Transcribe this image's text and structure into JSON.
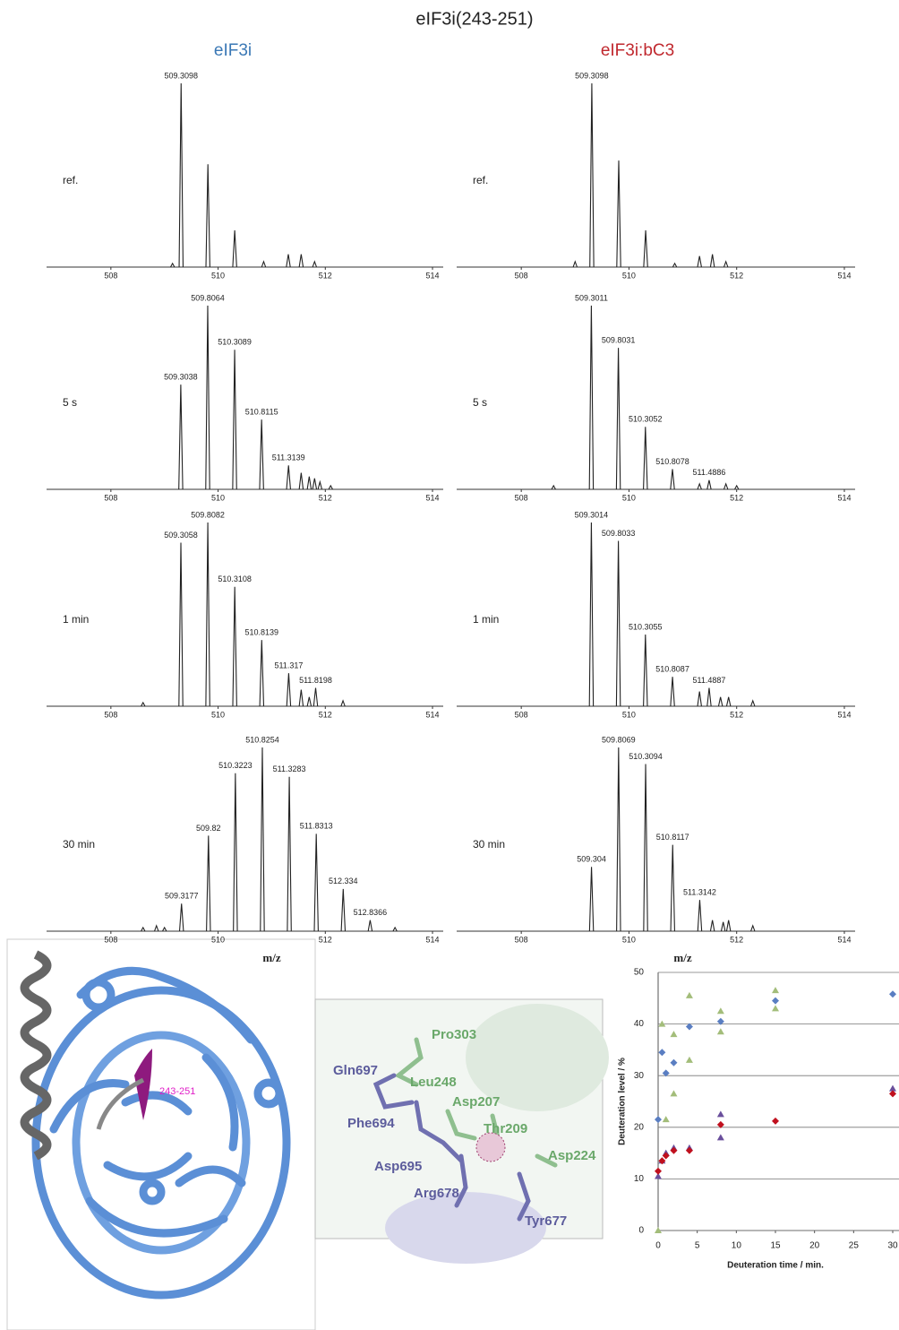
{
  "title": "eIF3i(243-251)",
  "columns": [
    "eIF3i",
    "eIF3i:bC3"
  ],
  "structure": {
    "label": "243-251"
  },
  "detail": {
    "labels": [
      "Pro303",
      "Gln697",
      "Leu248",
      "Asp207",
      "Phe694",
      "Thr209",
      "Asp224",
      "Asp695",
      "Arg678",
      "Tyr677"
    ]
  },
  "chart_data": [
    {
      "type": "spectrum",
      "label": "ref.",
      "x": [
        509.3098
      ],
      "values": [
        100
      ],
      "minor": {
        "x": [
          509.15,
          509.81,
          510.31,
          510.85,
          511.31,
          511.55,
          511.8
        ],
        "values": [
          2,
          56,
          20,
          3,
          7,
          7,
          3
        ]
      },
      "xlim": [
        506.8,
        514.2
      ],
      "ylim": [
        0,
        100
      ],
      "xticks": [
        508,
        510,
        512,
        514
      ]
    },
    {
      "type": "spectrum",
      "label": "ref.",
      "x": [
        509.3098
      ],
      "values": [
        100
      ],
      "minor": {
        "x": [
          509.0,
          509.81,
          510.31,
          510.85,
          511.31,
          511.55,
          511.8
        ],
        "values": [
          3,
          58,
          20,
          2,
          6,
          7,
          3
        ]
      },
      "xlim": [
        506.8,
        514.2
      ],
      "ylim": [
        0,
        100
      ],
      "xticks": [
        508,
        510,
        512,
        514
      ]
    },
    {
      "type": "spectrum",
      "label": "5 s",
      "x": [
        509.3038,
        509.8064,
        510.3089,
        510.8115,
        511.3139
      ],
      "values": [
        57,
        100,
        76,
        38,
        13
      ],
      "minor": {
        "x": [
          511.55,
          511.7,
          511.8,
          511.9,
          512.1
        ],
        "values": [
          9,
          7,
          6,
          4,
          2
        ]
      },
      "xlim": [
        506.8,
        514.2
      ],
      "ylim": [
        0,
        100
      ],
      "xticks": [
        508,
        510,
        512,
        514
      ]
    },
    {
      "type": "spectrum",
      "label": "5 s",
      "x": [
        509.3011,
        509.8031,
        510.3052,
        510.8078,
        511.4886
      ],
      "values": [
        100,
        77,
        34,
        11,
        5
      ],
      "minor": {
        "x": [
          508.6,
          511.31,
          511.8,
          512.0
        ],
        "values": [
          2,
          3,
          3,
          2
        ]
      },
      "xlim": [
        506.8,
        514.2
      ],
      "ylim": [
        0,
        100
      ],
      "xticks": [
        508,
        510,
        512,
        514
      ]
    },
    {
      "type": "spectrum",
      "label": "1 min",
      "x": [
        509.3058,
        509.8082,
        510.3108,
        510.8139,
        511.317,
        511.8198
      ],
      "values": [
        89,
        100,
        65,
        36,
        18,
        10
      ],
      "minor": {
        "x": [
          508.6,
          511.55,
          511.7,
          512.33
        ],
        "values": [
          2,
          9,
          5,
          3
        ]
      },
      "xlim": [
        506.8,
        514.2
      ],
      "ylim": [
        0,
        100
      ],
      "xticks": [
        508,
        510,
        512,
        514
      ]
    },
    {
      "type": "spectrum",
      "label": "1 min",
      "x": [
        509.3014,
        509.8033,
        510.3055,
        510.8087,
        511.4887
      ],
      "values": [
        100,
        90,
        39,
        16,
        10
      ],
      "minor": {
        "x": [
          511.31,
          511.7,
          511.85,
          512.3
        ],
        "values": [
          8,
          5,
          5,
          3
        ]
      },
      "xlim": [
        506.8,
        514.2
      ],
      "ylim": [
        0,
        100
      ],
      "xticks": [
        508,
        510,
        512,
        514
      ]
    },
    {
      "type": "spectrum",
      "label": "30 min",
      "xlabel": "m/z",
      "x": [
        509.3177,
        509.82,
        510.3223,
        510.8254,
        511.3283,
        511.8313,
        512.334,
        512.8366
      ],
      "values": [
        15,
        52,
        86,
        100,
        84,
        53,
        23,
        6
      ],
      "minor": {
        "x": [
          508.6,
          508.85,
          509.0,
          513.3
        ],
        "values": [
          2,
          3,
          2,
          2
        ]
      },
      "xlim": [
        506.8,
        514.2
      ],
      "ylim": [
        0,
        100
      ],
      "xticks": [
        508,
        510,
        512,
        514
      ]
    },
    {
      "type": "spectrum",
      "label": "30 min",
      "xlabel": "m/z",
      "x": [
        509.304,
        509.8069,
        510.3094,
        510.8117,
        511.3142
      ],
      "values": [
        35,
        100,
        91,
        47,
        17
      ],
      "minor": {
        "x": [
          511.55,
          511.75,
          511.85,
          512.3
        ],
        "values": [
          6,
          5,
          6,
          3
        ]
      },
      "xlim": [
        506.8,
        514.2
      ],
      "ylim": [
        0,
        100
      ],
      "xticks": [
        508,
        510,
        512,
        514
      ]
    },
    {
      "type": "scatter",
      "xlabel": "Deuteration time / min.",
      "ylabel": "Deuteration level / %",
      "xlim": [
        0,
        30
      ],
      "ylim": [
        0,
        50
      ],
      "xticks": [
        0,
        5,
        10,
        15,
        20,
        25,
        30
      ],
      "yticks": [
        0,
        10,
        20,
        30,
        40,
        50
      ],
      "grid": true,
      "series": [
        {
          "color": "#5a7ec2",
          "marker": "diamond",
          "x": [
            0,
            0.5,
            1,
            2,
            4,
            8,
            15,
            30
          ],
          "values": [
            21.5,
            34.5,
            30.5,
            32.5,
            39.5,
            40.5,
            44.5,
            45.8
          ]
        },
        {
          "color": "#a3bd7a",
          "marker": "triangle",
          "x": [
            0,
            0.5,
            1,
            2,
            2,
            4,
            4,
            8,
            8,
            15,
            15
          ],
          "values": [
            0,
            40,
            21.5,
            38,
            26.5,
            45.5,
            33,
            42.5,
            38.5,
            46.5,
            43
          ]
        },
        {
          "color": "#6a4f9c",
          "marker": "triangle",
          "x": [
            0,
            0.5,
            1,
            2,
            4,
            8,
            8,
            30
          ],
          "values": [
            10.5,
            13.5,
            15,
            16,
            16,
            22.5,
            18,
            27.5
          ]
        },
        {
          "color": "#c0101e",
          "marker": "diamond",
          "x": [
            0,
            0.5,
            1,
            2,
            4,
            8,
            15,
            30
          ],
          "values": [
            11.5,
            13.5,
            14.5,
            15.5,
            15.5,
            20.5,
            21.2,
            26.5
          ]
        }
      ]
    }
  ]
}
